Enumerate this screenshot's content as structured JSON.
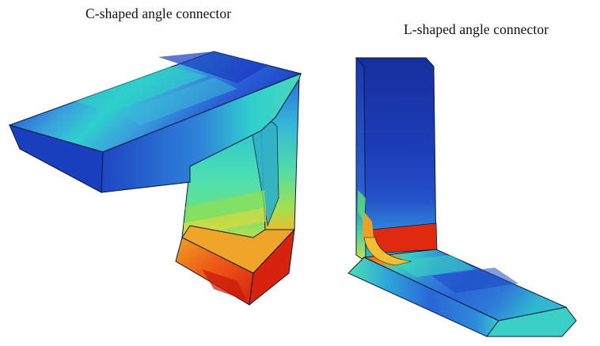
{
  "figure": {
    "left_caption": "C-shaped angle connector",
    "right_caption": "L-shaped angle connector"
  },
  "colors": {
    "deep_blue": "#1a3fbe",
    "blue": "#2a66d8",
    "light_blue": "#3a8ce0",
    "cyan": "#2fcfd0",
    "aqua_green": "#4fe0b0",
    "green": "#78e060",
    "yellow": "#e8e030",
    "orange": "#f08a20",
    "red": "#e02a10",
    "edge": "#0a1a3a"
  }
}
